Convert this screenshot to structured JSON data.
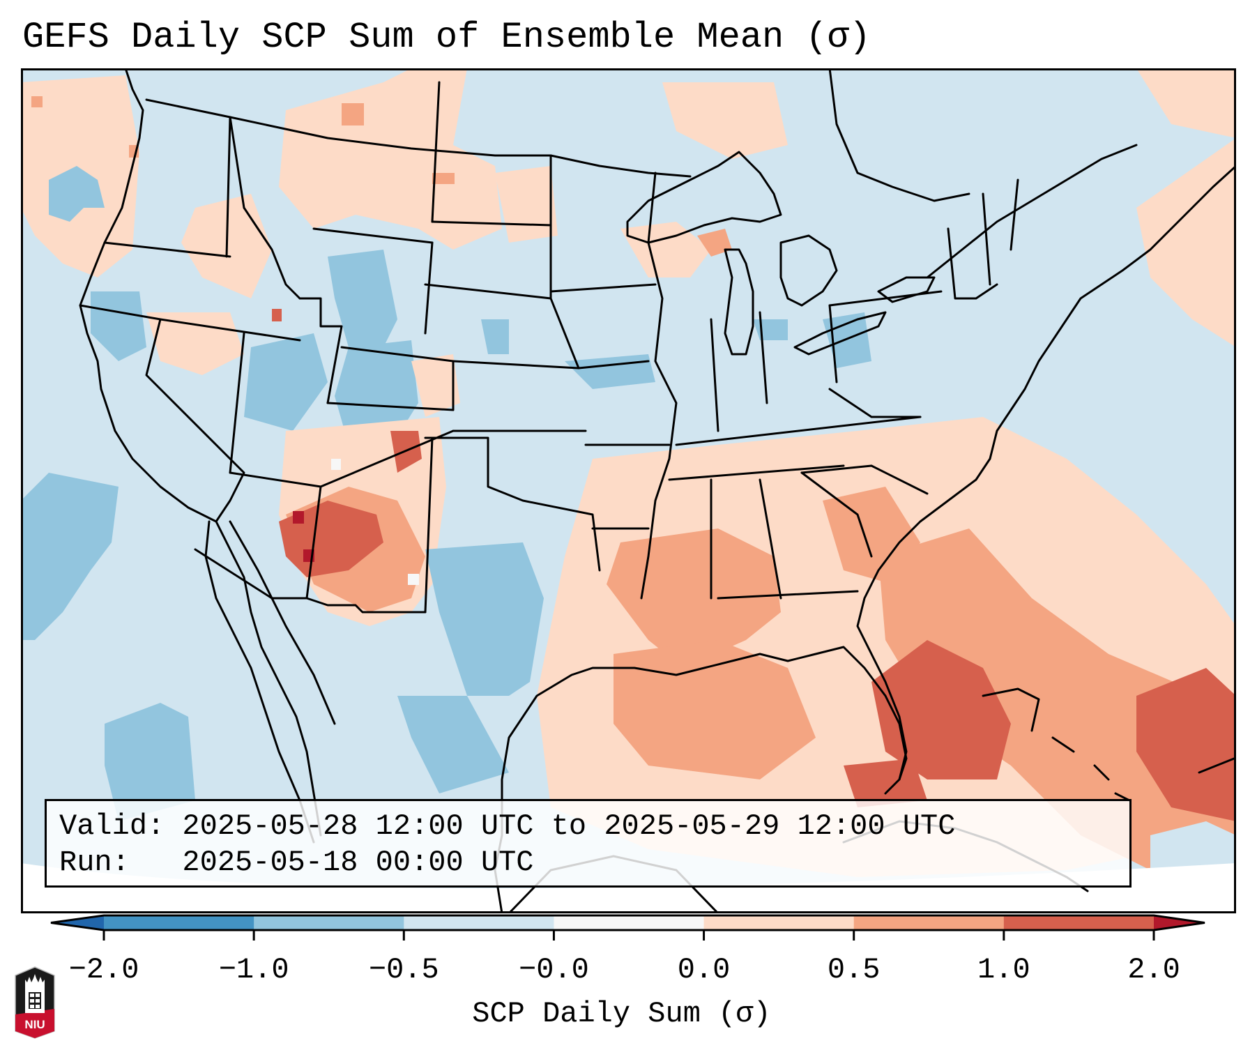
{
  "title": "GEFS Daily SCP Sum of Ensemble Mean (σ)",
  "info_box": {
    "valid_line": "Valid: 2025-05-28 12:00 UTC to 2025-05-29 12:00 UTC",
    "run_line": "Run:   2025-05-18 00:00 UTC",
    "valid_label": "Valid:",
    "valid_start": "2025-05-28 12:00 UTC",
    "valid_end": "2025-05-29 12:00 UTC",
    "run_label": "Run:",
    "run_time": "2025-05-18 00:00 UTC"
  },
  "colorbar": {
    "label": "SCP Daily Sum (σ)",
    "ticks": [
      "−2.0",
      "−1.0",
      "−0.5",
      "−0.0",
      "0.0",
      "0.5",
      "1.0",
      "2.0"
    ],
    "bins": [
      {
        "range": "< -2.0",
        "color": "#2166ac",
        "extend": "min"
      },
      {
        "range": "-2.0 to -1.0",
        "color": "#4393c3"
      },
      {
        "range": "-1.0 to -0.5",
        "color": "#92c5de"
      },
      {
        "range": "-0.5 to -0.0",
        "color": "#d1e5f0"
      },
      {
        "range": "-0.0 to 0.0",
        "color": "#f7f7f7"
      },
      {
        "range": "0.0 to 0.5",
        "color": "#fddbc7"
      },
      {
        "range": "0.5 to 1.0",
        "color": "#f4a582"
      },
      {
        "range": "1.0 to 2.0",
        "color": "#d6604d"
      },
      {
        "range": "> 2.0",
        "color": "#b2182b",
        "extend": "max"
      }
    ]
  },
  "logo": {
    "text": "NIU",
    "name": "Northern Illinois University"
  },
  "chart_data": {
    "type": "heatmap",
    "title": "GEFS Daily SCP Sum of Ensemble Mean (σ)",
    "colorbar_label": "SCP Daily Sum (σ)",
    "levels": [
      -2.0,
      -1.0,
      -0.5,
      -0.0,
      0.0,
      0.5,
      1.0,
      2.0
    ],
    "domain": "Contiguous United States with adjacent Canada, Mexico, Gulf of Mexico, Caribbean and Atlantic",
    "regions": [
      {
        "name": "Background (most of map)",
        "category": "-0.5 to -0.0"
      },
      {
        "name": "Northern Rockies / Montana",
        "category": "0.0 to 0.5"
      },
      {
        "name": "Colorado / Utah interior",
        "category": "-1.0 to -0.5"
      },
      {
        "name": "New Mexico / Arizona border / West Texas",
        "category": "1.0 to 2.0",
        "max_category": "> 2.0"
      },
      {
        "name": "Central & South Texas",
        "category": "-1.0 to -0.5"
      },
      {
        "name": "Lower Mississippi Valley / Gulf Coast",
        "category": "0.5 to 1.0"
      },
      {
        "name": "Southeast US / Carolinas",
        "category": "0.0 to 0.5"
      },
      {
        "name": "Florida Straits / Bahamas / Western Atlantic",
        "category": "1.0 to 2.0"
      },
      {
        "name": "Eastern Pacific off Baja",
        "category": "-1.0 to -0.5"
      },
      {
        "name": "Upper Michigan / Wisconsin",
        "category": "0.0 to 0.5"
      }
    ]
  }
}
